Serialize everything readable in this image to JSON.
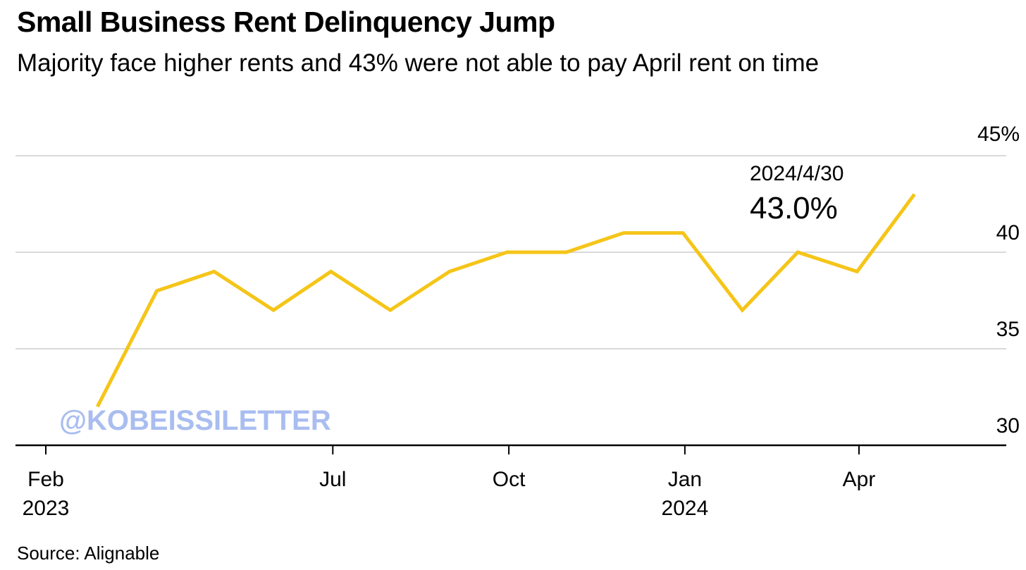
{
  "title": "Small Business Rent Delinquency Jump",
  "subtitle": "Majority face higher rents and 43% were not able to pay April rent on time",
  "source": "Source: Alignable",
  "watermark": "@KOBEISSILETTER",
  "colors": {
    "line": "#f5c518",
    "grid": "#d9d9d9",
    "axis": "#000000",
    "watermark": "#a9bdf0"
  },
  "chart_data": {
    "type": "line",
    "title": "Small Business Rent Delinquency Jump",
    "subtitle": "Majority face higher rents and 43% were not able to pay April rent on time",
    "xlabel": "",
    "ylabel": "",
    "ylim": [
      30,
      45
    ],
    "y_axis_side": "right",
    "grid": true,
    "y_ticks": [
      {
        "value": 30,
        "label": "30"
      },
      {
        "value": 35,
        "label": "35"
      },
      {
        "value": 40,
        "label": "40"
      },
      {
        "value": 45,
        "label": "45%"
      }
    ],
    "x_ticks": [
      {
        "date": "2023-02",
        "label": "Feb",
        "sublabel": "2023"
      },
      {
        "date": "2023-07",
        "label": "Jul",
        "sublabel": ""
      },
      {
        "date": "2023-10",
        "label": "Oct",
        "sublabel": ""
      },
      {
        "date": "2024-01",
        "label": "Jan",
        "sublabel": "2024"
      },
      {
        "date": "2024-04",
        "label": "Apr",
        "sublabel": ""
      }
    ],
    "series": [
      {
        "color": "#f5c518",
        "points": [
          {
            "date": "2023-02-28",
            "value": 32
          },
          {
            "date": "2023-03-31",
            "value": 38
          },
          {
            "date": "2023-04-30",
            "value": 39
          },
          {
            "date": "2023-05-31",
            "value": 37
          },
          {
            "date": "2023-06-30",
            "value": 39
          },
          {
            "date": "2023-07-31",
            "value": 37
          },
          {
            "date": "2023-08-31",
            "value": 39
          },
          {
            "date": "2023-09-30",
            "value": 40
          },
          {
            "date": "2023-10-31",
            "value": 40
          },
          {
            "date": "2023-11-30",
            "value": 41
          },
          {
            "date": "2023-12-31",
            "value": 41
          },
          {
            "date": "2024-01-31",
            "value": 37
          },
          {
            "date": "2024-02-29",
            "value": 40
          },
          {
            "date": "2024-03-31",
            "value": 39
          },
          {
            "date": "2024-04-30",
            "value": 43
          }
        ]
      }
    ],
    "annotation": {
      "date_label": "2024/4/30",
      "value_label": "43.0%"
    }
  }
}
